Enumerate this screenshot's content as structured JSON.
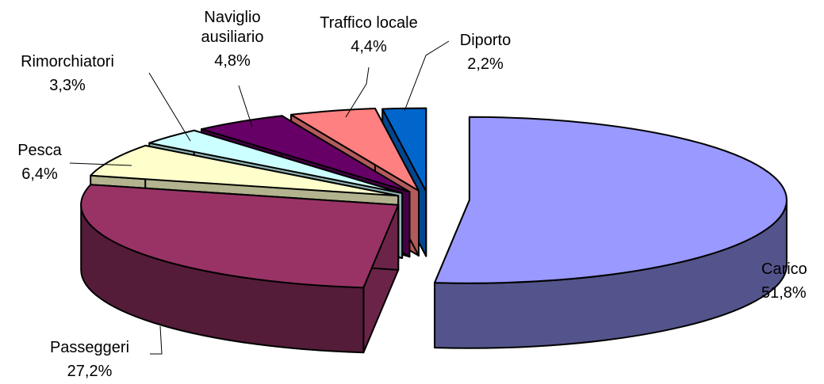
{
  "chart_data": {
    "type": "pie",
    "style": "3d-exploded",
    "title": "",
    "legend": "none",
    "slices": [
      {
        "name": "Carico",
        "value": 51.8,
        "label": "51,8%",
        "color": "#9999FF"
      },
      {
        "name": "Passeggeri",
        "value": 27.2,
        "label": "27,2%",
        "color": "#993366"
      },
      {
        "name": "Pesca",
        "value": 6.4,
        "label": "6,4%",
        "color": "#FFFFCC"
      },
      {
        "name": "Rimorchiatori",
        "value": 3.3,
        "label": "3,3%",
        "color": "#CCFFFF"
      },
      {
        "name": "Naviglio ausiliario",
        "value": 4.8,
        "label": "4,8%",
        "color": "#660066"
      },
      {
        "name": "Traffico locale",
        "value": 4.4,
        "label": "4,4%",
        "color": "#FF8080"
      },
      {
        "name": "Diporto",
        "value": 2.2,
        "label": "2,2%",
        "color": "#0066CC"
      }
    ],
    "note_gap": {
      "value": 0.0
    }
  }
}
